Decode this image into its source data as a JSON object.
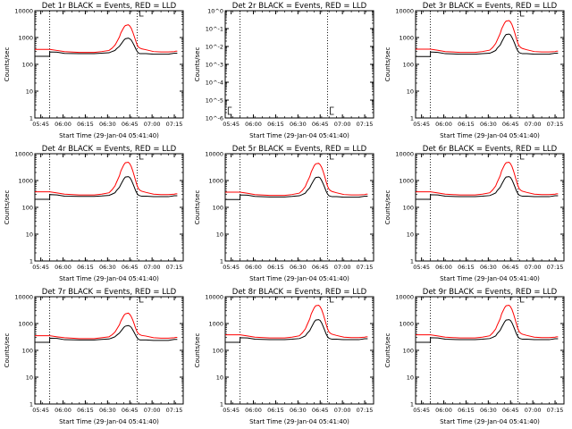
{
  "figure": {
    "panels": [
      {
        "title": "Det 1r BLACK = Events, RED = LLD",
        "xlabel": "Start Time (29-Jan-04 05:41:40)",
        "ylabel": "Counts/sec"
      },
      {
        "title": "Det 2r BLACK = Events, RED = LLD",
        "xlabel": "Start Time (29-Jan-04 05:41:40)",
        "ylabel": "Counts/sec"
      },
      {
        "title": "Det 3r BLACK = Events, RED = LLD",
        "xlabel": "Start Time (29-Jan-04 05:41:40)",
        "ylabel": "Counts/sec"
      },
      {
        "title": "Det 4r BLACK = Events, RED = LLD",
        "xlabel": "Start Time (29-Jan-04 05:41:40)",
        "ylabel": "Counts/sec"
      },
      {
        "title": "Det 5r BLACK = Events, RED = LLD",
        "xlabel": "Start Time (29-Jan-04 05:41:40)",
        "ylabel": "Counts/sec"
      },
      {
        "title": "Det 6r BLACK = Events, RED = LLD",
        "xlabel": "Start Time (29-Jan-04 05:41:40)",
        "ylabel": "Counts/sec"
      },
      {
        "title": "Det 7r BLACK = Events, RED = LLD",
        "xlabel": "Start Time (29-Jan-04 05:41:40)",
        "ylabel": "Counts/sec"
      },
      {
        "title": "Det 8r BLACK = Events, RED = LLD",
        "xlabel": "Start Time (29-Jan-04 05:41:40)",
        "ylabel": "Counts/sec"
      },
      {
        "title": "Det 9r BLACK = Events, RED = LLD",
        "xlabel": "Start Time (29-Jan-04 05:41:40)",
        "ylabel": "Counts/sec"
      }
    ]
  },
  "chart_data": {
    "type": "line",
    "x_ticks": [
      "05:45",
      "06:00",
      "06:15",
      "06:30",
      "06:45",
      "07:00",
      "07:15"
    ],
    "x_tick_minutes": [
      4,
      19,
      34,
      49,
      64,
      79,
      94
    ],
    "xlim": [
      0,
      100
    ],
    "y_ticks_default": [
      "1",
      "10",
      "100",
      "1000",
      "10000"
    ],
    "ylim_default": [
      1,
      10000
    ],
    "y_ticks_det2": [
      "10^-6",
      "10^-5",
      "10^-4",
      "10^-3",
      "10^-2",
      "10^-1",
      "10^0"
    ],
    "ylim_det2": [
      1e-06,
      1
    ],
    "y_scale": "log",
    "vertical_markers_minutes": [
      10,
      69
    ],
    "colors": {
      "events": "#000000",
      "lld": "#ff0000",
      "markers": "#000000"
    },
    "x_minutes": [
      0,
      10,
      10,
      15,
      20,
      30,
      40,
      45,
      50,
      52,
      54,
      55,
      57,
      58,
      60,
      61,
      63,
      64,
      65,
      66,
      67,
      68,
      69,
      70,
      71,
      72,
      75,
      80,
      85,
      90,
      94,
      95,
      96
    ],
    "series": [
      {
        "name": "Events",
        "panel": 1,
        "values": [
          200,
          200,
          290,
          285,
          255,
          250,
          250,
          260,
          270,
          300,
          330,
          380,
          470,
          560,
          800,
          900,
          950,
          900,
          800,
          640,
          500,
          380,
          300,
          260,
          250,
          250,
          250,
          240,
          240,
          240,
          260,
          260,
          260
        ]
      },
      {
        "name": "LLD",
        "panel": 1,
        "values": [
          360,
          360,
          360,
          330,
          300,
          280,
          280,
          300,
          330,
          400,
          520,
          650,
          1050,
          1500,
          2400,
          2800,
          3000,
          2700,
          2200,
          1600,
          1100,
          750,
          520,
          430,
          400,
          380,
          350,
          300,
          290,
          290,
          300,
          310,
          310
        ]
      },
      {
        "name": "Events",
        "panel": 3,
        "values": [
          195,
          195,
          290,
          280,
          250,
          240,
          240,
          250,
          260,
          290,
          330,
          400,
          520,
          680,
          1100,
          1300,
          1350,
          1250,
          1000,
          760,
          560,
          400,
          310,
          270,
          260,
          250,
          250,
          240,
          240,
          240,
          260,
          260,
          260
        ]
      },
      {
        "name": "LLD",
        "panel": 3,
        "values": [
          370,
          370,
          370,
          335,
          300,
          280,
          280,
          300,
          340,
          430,
          600,
          800,
          1400,
          2100,
          3500,
          4100,
          4300,
          3800,
          3000,
          2100,
          1400,
          900,
          600,
          470,
          420,
          390,
          350,
          300,
          290,
          290,
          300,
          310,
          310
        ]
      },
      {
        "name": "Events",
        "panel": 4,
        "values": [
          200,
          200,
          300,
          290,
          260,
          255,
          255,
          265,
          280,
          310,
          350,
          420,
          560,
          720,
          1150,
          1350,
          1400,
          1300,
          1050,
          780,
          570,
          410,
          320,
          280,
          270,
          260,
          260,
          250,
          250,
          250,
          270,
          270,
          270
        ]
      },
      {
        "name": "LLD",
        "panel": 4,
        "values": [
          380,
          380,
          380,
          345,
          310,
          290,
          290,
          310,
          350,
          450,
          630,
          850,
          1500,
          2300,
          3900,
          4600,
          4800,
          4200,
          3300,
          2300,
          1500,
          950,
          630,
          480,
          430,
          400,
          360,
          310,
          300,
          300,
          310,
          320,
          320
        ]
      },
      {
        "name": "Events",
        "panel": 5,
        "values": [
          195,
          195,
          290,
          285,
          255,
          245,
          245,
          255,
          270,
          300,
          340,
          410,
          540,
          700,
          1100,
          1300,
          1350,
          1250,
          1000,
          760,
          560,
          400,
          310,
          270,
          260,
          250,
          250,
          240,
          240,
          240,
          260,
          260,
          260
        ]
      },
      {
        "name": "LLD",
        "panel": 5,
        "values": [
          370,
          370,
          370,
          335,
          300,
          280,
          280,
          300,
          340,
          430,
          600,
          820,
          1400,
          2100,
          3600,
          4200,
          4400,
          3900,
          3100,
          2200,
          1450,
          920,
          610,
          470,
          420,
          390,
          350,
          300,
          290,
          290,
          300,
          310,
          310
        ]
      },
      {
        "name": "Events",
        "panel": 6,
        "values": [
          200,
          200,
          295,
          290,
          260,
          250,
          250,
          260,
          275,
          305,
          345,
          420,
          560,
          720,
          1150,
          1350,
          1400,
          1300,
          1050,
          780,
          570,
          410,
          320,
          280,
          270,
          260,
          260,
          250,
          250,
          250,
          270,
          270,
          270
        ]
      },
      {
        "name": "LLD",
        "panel": 6,
        "values": [
          380,
          380,
          380,
          345,
          310,
          290,
          290,
          310,
          350,
          450,
          630,
          860,
          1500,
          2300,
          3900,
          4600,
          4800,
          4200,
          3300,
          2300,
          1500,
          950,
          630,
          480,
          430,
          400,
          360,
          310,
          300,
          300,
          310,
          320,
          320
        ]
      },
      {
        "name": "Events",
        "panel": 7,
        "values": [
          200,
          200,
          285,
          280,
          250,
          245,
          245,
          255,
          265,
          290,
          320,
          360,
          440,
          520,
          720,
          800,
          840,
          800,
          720,
          580,
          460,
          360,
          290,
          255,
          245,
          245,
          245,
          235,
          235,
          235,
          255,
          255,
          255
        ]
      },
      {
        "name": "LLD",
        "panel": 7,
        "values": [
          350,
          350,
          350,
          320,
          295,
          275,
          275,
          295,
          320,
          380,
          480,
          590,
          900,
          1250,
          2000,
          2300,
          2450,
          2200,
          1800,
          1350,
          950,
          650,
          480,
          410,
          380,
          360,
          340,
          295,
          285,
          285,
          295,
          305,
          305
        ]
      },
      {
        "name": "Events",
        "panel": 8,
        "values": [
          200,
          200,
          295,
          290,
          260,
          250,
          250,
          260,
          275,
          305,
          345,
          415,
          550,
          710,
          1150,
          1350,
          1400,
          1300,
          1050,
          780,
          570,
          410,
          320,
          280,
          270,
          260,
          260,
          250,
          250,
          250,
          270,
          270,
          270
        ]
      },
      {
        "name": "LLD",
        "panel": 8,
        "values": [
          380,
          380,
          380,
          345,
          310,
          290,
          290,
          310,
          350,
          450,
          630,
          850,
          1500,
          2300,
          3900,
          4600,
          4800,
          4200,
          3300,
          2300,
          1500,
          950,
          630,
          480,
          430,
          400,
          360,
          310,
          300,
          300,
          310,
          320,
          320
        ]
      },
      {
        "name": "Events",
        "panel": 9,
        "values": [
          200,
          200,
          295,
          290,
          260,
          250,
          250,
          260,
          275,
          305,
          345,
          420,
          560,
          720,
          1150,
          1350,
          1400,
          1300,
          1050,
          780,
          570,
          410,
          320,
          280,
          270,
          260,
          260,
          250,
          250,
          250,
          270,
          270,
          270
        ]
      },
      {
        "name": "LLD",
        "panel": 9,
        "values": [
          380,
          380,
          380,
          345,
          310,
          290,
          290,
          310,
          350,
          450,
          630,
          860,
          1500,
          2300,
          3900,
          4600,
          4800,
          4200,
          3300,
          2300,
          1500,
          950,
          630,
          480,
          430,
          400,
          360,
          310,
          300,
          300,
          310,
          320,
          320
        ]
      }
    ]
  }
}
